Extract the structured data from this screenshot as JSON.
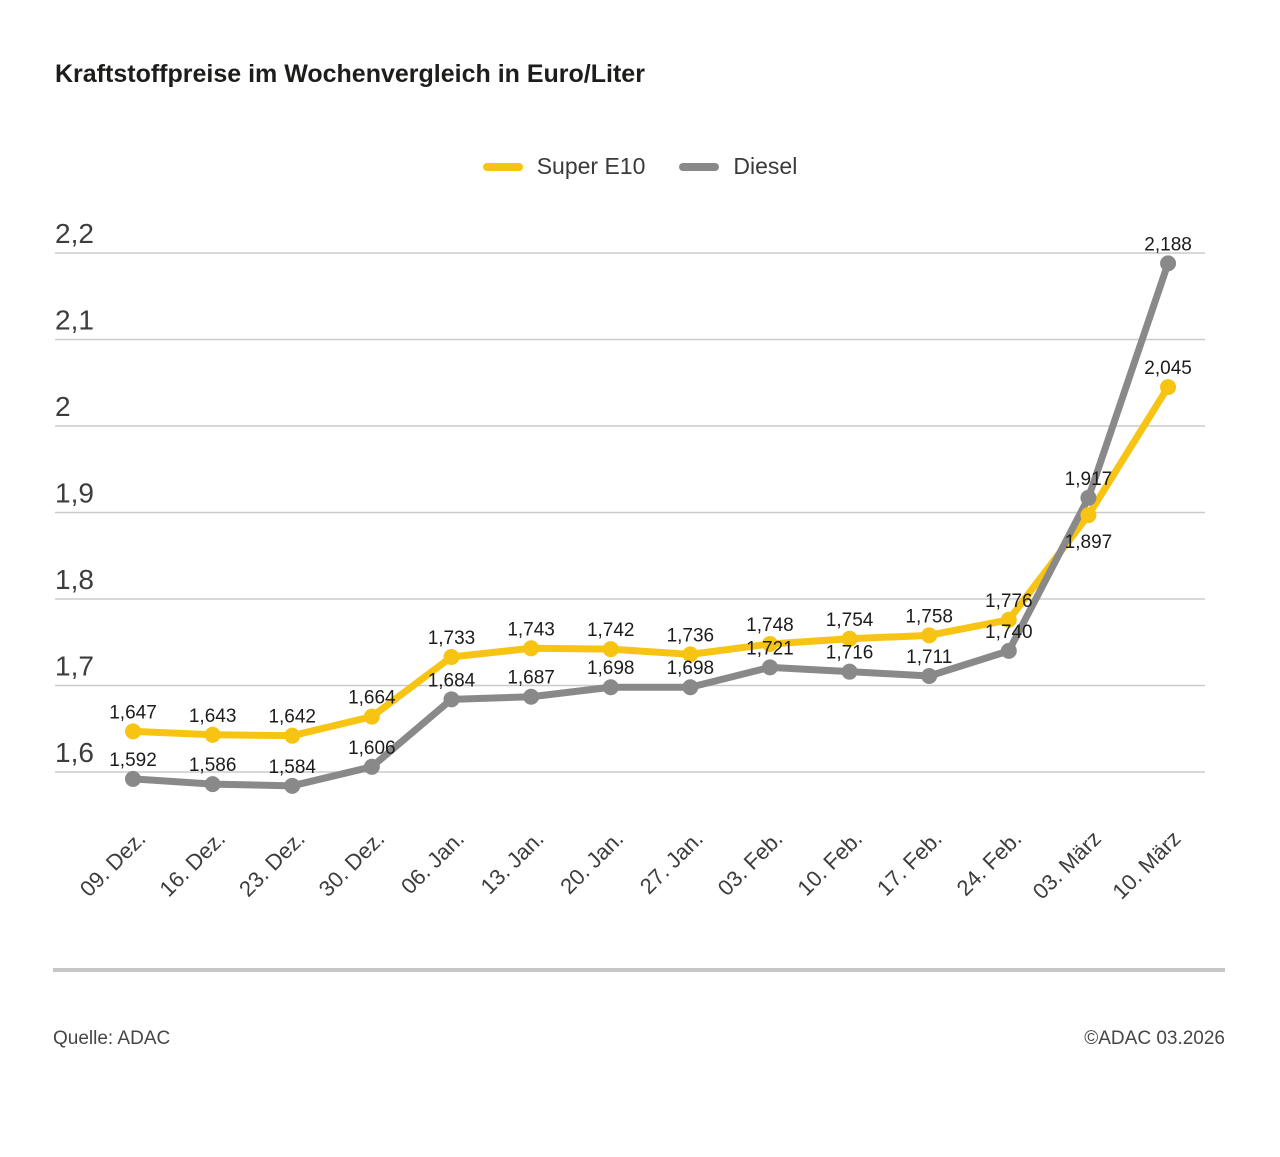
{
  "title": "Kraftstoffpreise im Wochenvergleich in Euro/Liter",
  "legend": [
    {
      "label": "Super E10",
      "color": "#F8C413"
    },
    {
      "label": "Diesel",
      "color": "#898989"
    }
  ],
  "footer": {
    "source": "Quelle: ADAC",
    "copyright": "©ADAC 03.2026"
  },
  "chart_data": {
    "type": "line",
    "title": "Kraftstoffpreise im Wochenvergleich in Euro/Liter",
    "unit": "Euro/Liter",
    "categories": [
      "09. Dez.",
      "16. Dez.",
      "23. Dez.",
      "30. Dez.",
      "06. Jan.",
      "13. Jan.",
      "20. Jan.",
      "27. Jan.",
      "03. Feb.",
      "10. Feb.",
      "17. Feb.",
      "24. Feb.",
      "03. März",
      "10. März"
    ],
    "series": [
      {
        "name": "Super E10",
        "color": "#F8C413",
        "values": [
          1.647,
          1.643,
          1.642,
          1.664,
          1.733,
          1.743,
          1.742,
          1.736,
          1.748,
          1.754,
          1.758,
          1.776,
          1.897,
          2.045
        ],
        "labels": [
          "1,647",
          "1,643",
          "1,642",
          "1,664",
          "1,733",
          "1,743",
          "1,742",
          "1,736",
          "1,748",
          "1,754",
          "1,758",
          "1,776",
          "1,897",
          "2,045"
        ]
      },
      {
        "name": "Diesel",
        "color": "#898989",
        "values": [
          1.592,
          1.586,
          1.584,
          1.606,
          1.684,
          1.687,
          1.698,
          1.698,
          1.721,
          1.716,
          1.711,
          1.74,
          1.917,
          2.188
        ],
        "labels": [
          "1,592",
          "1,586",
          "1,584",
          "1,606",
          "1,684",
          "1,687",
          "1,698",
          "1,698",
          "1,721",
          "1,716",
          "1,711",
          "1,740",
          "1,917",
          "2,188"
        ]
      }
    ],
    "y_ticks": [
      2.2,
      2.1,
      2.0,
      1.9,
      1.8,
      1.7,
      1.6
    ],
    "y_tick_labels": [
      "2,2",
      "2,1",
      "2",
      "1,9",
      "1,8",
      "1,7",
      "1,6"
    ],
    "ylim": [
      1.55,
      2.25
    ],
    "grid": true,
    "grid_color": "#cbcbcb",
    "legend_position": "top"
  }
}
